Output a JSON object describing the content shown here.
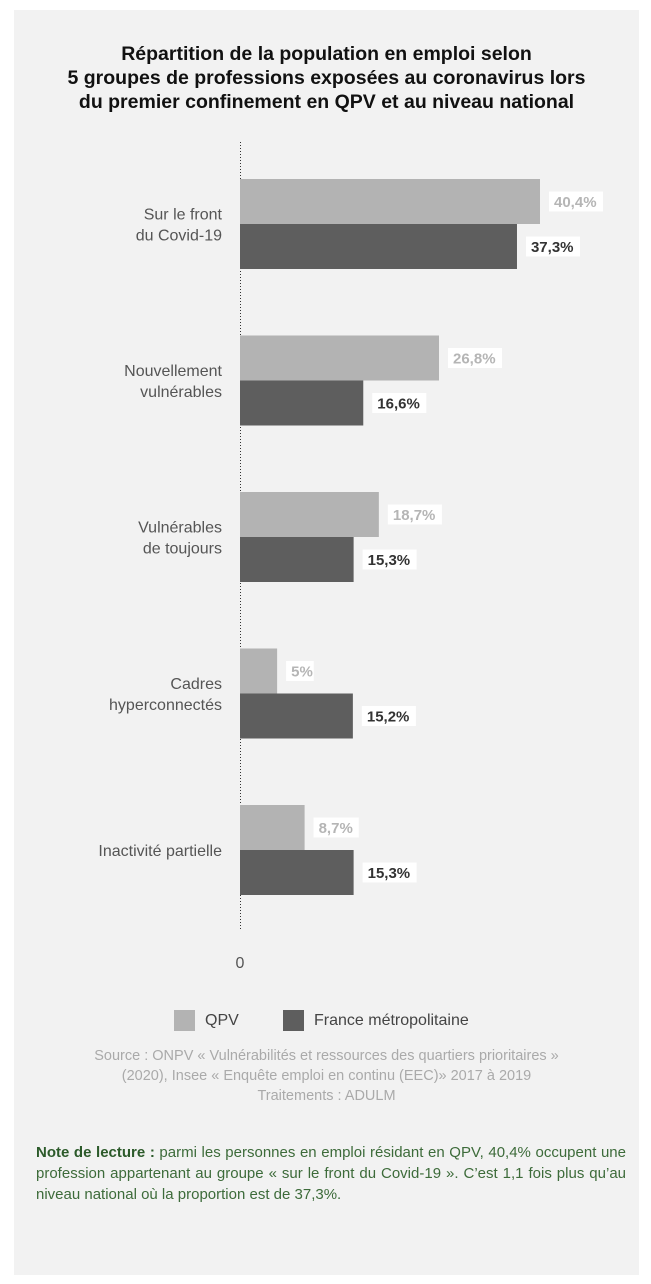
{
  "title_lines": [
    "Répartition de la population en emploi selon",
    "5 groupes de professions exposées au coronavirus lors",
    "du premier confinement en QPV et au niveau national"
  ],
  "colors": {
    "qpv": "#b3b3b3",
    "france": "#5e5e5e",
    "background": "#f2f2f2",
    "note": "#3d6b3a",
    "source": "#aaaaaa"
  },
  "chart_data": {
    "type": "bar",
    "orientation": "horizontal",
    "title": "Répartition de la population en emploi selon 5 groupes de professions exposées au coronavirus lors du premier confinement en QPV et au niveau national",
    "categories": [
      [
        "Sur le front",
        "du Covid-19"
      ],
      [
        "Nouvellement",
        "vulnérables"
      ],
      [
        "Vulnérables",
        "de toujours"
      ],
      [
        "Cadres",
        "hyperconnectés"
      ],
      [
        "Inactivité partielle"
      ]
    ],
    "series": [
      {
        "name": "QPV",
        "values": [
          40.4,
          26.8,
          18.7,
          5,
          8.7
        ],
        "labels": [
          "40,4%",
          "26,8%",
          "18,7%",
          "5%",
          "8,7%"
        ]
      },
      {
        "name": "France métropolitaine",
        "values": [
          37.3,
          16.6,
          15.3,
          15.2,
          15.3
        ],
        "labels": [
          "37,3%",
          "16,6%",
          "15,3%",
          "15,2%",
          "15,3%"
        ]
      }
    ],
    "x_tick_labels": [
      "0"
    ],
    "xlim": [
      0,
      40.4
    ],
    "legend_position": "bottom",
    "grid": false
  },
  "source_lines": [
    "Source : ONPV « Vulnérabilités et ressources des quartiers prioritaires »",
    "(2020), Insee « Enquête emploi en continu (EEC)» 2017 à 2019",
    "Traitements : ADULM"
  ],
  "note": {
    "lead": "Note de lecture :",
    "text": " parmi les personnes en emploi résidant en QPV, 40,4% occupent une profession appartenant au groupe « sur le front du Covid-19 ». C’est 1,1 fois plus qu’au niveau national où la proportion est de 37,3%."
  }
}
